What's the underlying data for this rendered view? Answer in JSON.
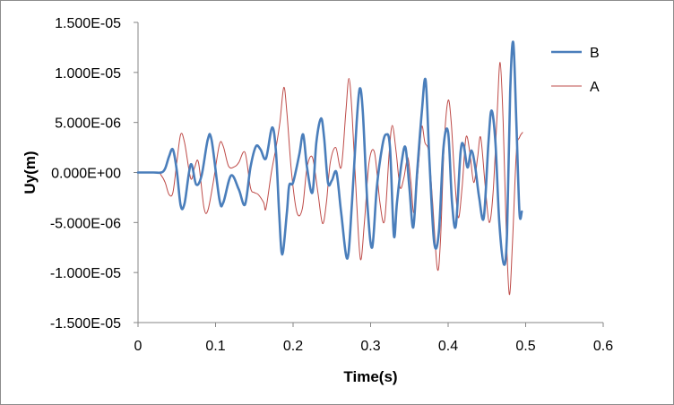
{
  "chart_data": {
    "type": "line",
    "title": "",
    "xlabel": "Time(s)",
    "ylabel": "Uy(m)",
    "xlim": [
      0,
      0.6
    ],
    "ylim": [
      -1.5e-05,
      1.5e-05
    ],
    "x_ticks": [
      "0",
      "0.1",
      "0.2",
      "0.3",
      "0.4",
      "0.5",
      "0.6"
    ],
    "y_ticks": [
      "1.500E-05",
      "1.000E-05",
      "5.000E-06",
      "0.000E+00",
      "-5.000E-06",
      "-1.000E-05",
      "-1.500E-05"
    ],
    "grid": false,
    "legend_position": "top-right",
    "series": [
      {
        "name": "B",
        "color": "#4a7ebb",
        "points": [
          [
            0.0,
            0.0
          ],
          [
            0.02,
            0.0
          ],
          [
            0.03,
            0.0
          ],
          [
            0.035,
            4e-07
          ],
          [
            0.04,
            1.6e-06
          ],
          [
            0.045,
            2.3e-06
          ],
          [
            0.05,
            2e-07
          ],
          [
            0.055,
            -3.3e-06
          ],
          [
            0.06,
            -3.1e-06
          ],
          [
            0.068,
            8e-07
          ],
          [
            0.075,
            -1.2e-06
          ],
          [
            0.082,
            -3e-07
          ],
          [
            0.09,
            3.3e-06
          ],
          [
            0.095,
            3.2e-06
          ],
          [
            0.105,
            -2.7e-06
          ],
          [
            0.11,
            -3e-06
          ],
          [
            0.12,
            -3e-07
          ],
          [
            0.13,
            -1.7e-06
          ],
          [
            0.138,
            -3.2e-06
          ],
          [
            0.145,
            5e-07
          ],
          [
            0.152,
            2.6e-06
          ],
          [
            0.158,
            2.3e-06
          ],
          [
            0.165,
            1.4e-06
          ],
          [
            0.173,
            4.5e-06
          ],
          [
            0.178,
            2e-06
          ],
          [
            0.182,
            -4e-06
          ],
          [
            0.186,
            -8.2e-06
          ],
          [
            0.192,
            -4e-06
          ],
          [
            0.195,
            -1.3e-06
          ],
          [
            0.2,
            -1e-06
          ],
          [
            0.208,
            1.8e-06
          ],
          [
            0.213,
            3.8e-06
          ],
          [
            0.218,
            5e-07
          ],
          [
            0.225,
            -2e-06
          ],
          [
            0.23,
            3e-06
          ],
          [
            0.236,
            5.4e-06
          ],
          [
            0.24,
            3.5e-06
          ],
          [
            0.245,
            -1e-06
          ],
          [
            0.25,
            -8e-07
          ],
          [
            0.256,
            0.0
          ],
          [
            0.262,
            -4e-06
          ],
          [
            0.27,
            -8.6e-06
          ],
          [
            0.276,
            -3e-06
          ],
          [
            0.282,
            5e-06
          ],
          [
            0.286,
            8.4e-06
          ],
          [
            0.29,
            6e-06
          ],
          [
            0.296,
            -3.3e-06
          ],
          [
            0.302,
            -7.5e-06
          ],
          [
            0.308,
            -1.5e-06
          ],
          [
            0.315,
            2.6e-06
          ],
          [
            0.32,
            3.8e-06
          ],
          [
            0.325,
            2.5e-06
          ],
          [
            0.33,
            -6.3e-06
          ],
          [
            0.334,
            -3e-06
          ],
          [
            0.34,
            1e-06
          ],
          [
            0.345,
            2.5e-06
          ],
          [
            0.35,
            -1.5e-06
          ],
          [
            0.355,
            -5.5e-06
          ],
          [
            0.36,
            0.0
          ],
          [
            0.366,
            6e-06
          ],
          [
            0.371,
            9.2e-06
          ],
          [
            0.376,
            1e-06
          ],
          [
            0.382,
            -7e-06
          ],
          [
            0.388,
            -6e-06
          ],
          [
            0.394,
            2.5e-06
          ],
          [
            0.4,
            4e-06
          ],
          [
            0.405,
            -3e-06
          ],
          [
            0.41,
            -5.3e-06
          ],
          [
            0.416,
            2e-06
          ],
          [
            0.42,
            2.7e-06
          ],
          [
            0.425,
            5e-07
          ],
          [
            0.43,
            2.2e-06
          ],
          [
            0.435,
            5e-07
          ],
          [
            0.44,
            -2.5e-06
          ],
          [
            0.446,
            -4.5e-06
          ],
          [
            0.452,
            3e-06
          ],
          [
            0.456,
            6.2e-06
          ],
          [
            0.461,
            3e-06
          ],
          [
            0.466,
            -5e-06
          ],
          [
            0.472,
            -9.2e-06
          ],
          [
            0.476,
            -6e-06
          ],
          [
            0.48,
            8e-06
          ],
          [
            0.484,
            1.3e-05
          ],
          [
            0.488,
            5e-06
          ],
          [
            0.492,
            -4e-06
          ],
          [
            0.495,
            -3.9e-06
          ]
        ]
      },
      {
        "name": "A",
        "color": "#be4b48",
        "points": [
          [
            0.0,
            0.0
          ],
          [
            0.025,
            0.0
          ],
          [
            0.03,
            -3e-07
          ],
          [
            0.035,
            -1e-06
          ],
          [
            0.04,
            -2.2e-06
          ],
          [
            0.045,
            -2e-06
          ],
          [
            0.05,
            1e-06
          ],
          [
            0.055,
            3.8e-06
          ],
          [
            0.06,
            3e-06
          ],
          [
            0.068,
            -6e-07
          ],
          [
            0.073,
            5e-07
          ],
          [
            0.078,
            1e-06
          ],
          [
            0.085,
            -3.5e-06
          ],
          [
            0.09,
            -3.8e-06
          ],
          [
            0.097,
            -1e-06
          ],
          [
            0.105,
            2.8e-06
          ],
          [
            0.11,
            2.6e-06
          ],
          [
            0.117,
            6e-07
          ],
          [
            0.125,
            6e-07
          ],
          [
            0.13,
            1e-06
          ],
          [
            0.138,
            2e-06
          ],
          [
            0.145,
            -1.5e-06
          ],
          [
            0.15,
            -2e-06
          ],
          [
            0.155,
            -2.2e-06
          ],
          [
            0.162,
            -3e-06
          ],
          [
            0.165,
            -3.6e-06
          ],
          [
            0.172,
            0.0
          ],
          [
            0.178,
            2.5e-06
          ],
          [
            0.183,
            5e-06
          ],
          [
            0.188,
            8.5e-06
          ],
          [
            0.192,
            6e-06
          ],
          [
            0.198,
            0.0
          ],
          [
            0.205,
            -4e-06
          ],
          [
            0.212,
            -3.6e-06
          ],
          [
            0.218,
            5e-07
          ],
          [
            0.225,
            1.5e-06
          ],
          [
            0.232,
            -2e-06
          ],
          [
            0.238,
            -5.1e-06
          ],
          [
            0.243,
            -3e-06
          ],
          [
            0.248,
            1e-06
          ],
          [
            0.255,
            2.5e-06
          ],
          [
            0.262,
            5e-07
          ],
          [
            0.268,
            6e-06
          ],
          [
            0.272,
            9.4e-06
          ],
          [
            0.276,
            6e-06
          ],
          [
            0.282,
            -3e-06
          ],
          [
            0.287,
            -8.7e-06
          ],
          [
            0.292,
            -5e-06
          ],
          [
            0.298,
            1e-06
          ],
          [
            0.305,
            2e-06
          ],
          [
            0.312,
            -3e-06
          ],
          [
            0.318,
            -4.8e-06
          ],
          [
            0.324,
            2e-06
          ],
          [
            0.328,
            4.7e-06
          ],
          [
            0.333,
            2e-06
          ],
          [
            0.338,
            -1.5e-06
          ],
          [
            0.343,
            -5e-07
          ],
          [
            0.348,
            1.5e-06
          ],
          [
            0.352,
            -1e-06
          ],
          [
            0.356,
            -4e-06
          ],
          [
            0.362,
            1e-06
          ],
          [
            0.366,
            4.6e-06
          ],
          [
            0.37,
            3e-06
          ],
          [
            0.375,
            2e-06
          ],
          [
            0.38,
            -3e-06
          ],
          [
            0.386,
            -9.6e-06
          ],
          [
            0.39,
            -7e-06
          ],
          [
            0.395,
            3e-06
          ],
          [
            0.4,
            7.2e-06
          ],
          [
            0.404,
            5e-06
          ],
          [
            0.408,
            0.0
          ],
          [
            0.413,
            -4.5e-06
          ],
          [
            0.418,
            -1.5e-06
          ],
          [
            0.423,
            3.5e-06
          ],
          [
            0.428,
            2e-06
          ],
          [
            0.433,
            -1e-06
          ],
          [
            0.438,
            1.5e-06
          ],
          [
            0.442,
            3.5e-06
          ],
          [
            0.448,
            -1.5e-06
          ],
          [
            0.453,
            -5e-06
          ],
          [
            0.458,
            -2e-06
          ],
          [
            0.463,
            5.5e-06
          ],
          [
            0.467,
            1.1e-05
          ],
          [
            0.471,
            5e-06
          ],
          [
            0.475,
            -6e-06
          ],
          [
            0.479,
            -1.22e-05
          ],
          [
            0.483,
            -7e-06
          ],
          [
            0.488,
            2e-06
          ],
          [
            0.492,
            3.5e-06
          ],
          [
            0.496,
            4e-06
          ]
        ]
      }
    ]
  }
}
